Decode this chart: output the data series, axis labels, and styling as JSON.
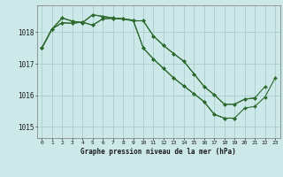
{
  "title": "Graphe pression niveau de la mer (hPa)",
  "bg_color": "#cce8e8",
  "grid_color": "#aacccc",
  "line_color": "#2d6a2d",
  "xlim": [
    -0.5,
    23.5
  ],
  "ylim": [
    1014.65,
    1018.85
  ],
  "yticks": [
    1015,
    1016,
    1017,
    1018
  ],
  "xticks": [
    0,
    1,
    2,
    3,
    4,
    5,
    6,
    7,
    8,
    9,
    10,
    11,
    12,
    13,
    14,
    15,
    16,
    17,
    18,
    19,
    20,
    21,
    22,
    23
  ],
  "series": [
    [
      1017.5,
      1018.1,
      1018.45,
      1018.35,
      1018.3,
      1018.55,
      1018.5,
      1018.45,
      1018.42,
      1018.38,
      1017.5,
      1017.15,
      1016.85,
      1016.55,
      1016.3,
      1016.05,
      1015.8,
      1015.4,
      1015.28,
      1015.28,
      null,
      null,
      null,
      null
    ],
    [
      1017.5,
      1018.1,
      1018.45,
      1018.35,
      1018.3,
      1018.55,
      1018.5,
      1018.45,
      1018.42,
      1018.38,
      1017.5,
      1017.15,
      1016.85,
      1016.55,
      1016.3,
      1016.05,
      1015.8,
      1015.4,
      1015.28,
      1015.28,
      1015.6,
      1015.65,
      1015.95,
      1016.55
    ],
    [
      1017.5,
      1018.1,
      1018.3,
      1018.28,
      1018.32,
      1018.22,
      1018.42,
      1018.44,
      1018.42,
      1018.36,
      1018.36,
      1017.88,
      1017.58,
      1017.32,
      1017.08,
      1016.68,
      1016.28,
      1016.02,
      1015.72,
      1015.72,
      1015.88,
      1015.92,
      1016.28,
      null
    ],
    [
      1017.5,
      1018.1,
      1018.3,
      1018.28,
      1018.32,
      1018.22,
      1018.42,
      1018.44,
      1018.42,
      1018.36,
      1018.36,
      1017.88,
      1017.58,
      1017.32,
      1017.08,
      1016.68,
      1016.28,
      1016.02,
      1015.72,
      1015.72,
      1015.88,
      1015.92,
      null,
      null
    ]
  ]
}
